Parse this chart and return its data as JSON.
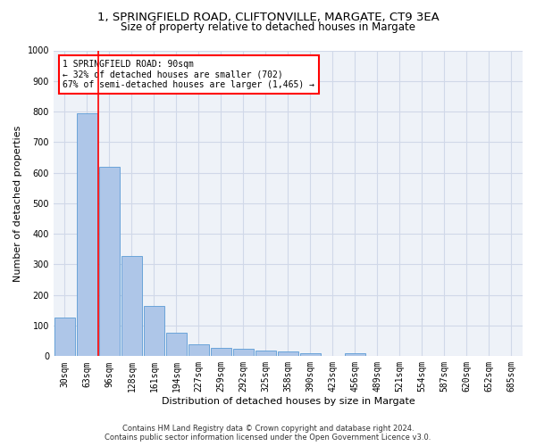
{
  "title1": "1, SPRINGFIELD ROAD, CLIFTONVILLE, MARGATE, CT9 3EA",
  "title2": "Size of property relative to detached houses in Margate",
  "xlabel": "Distribution of detached houses by size in Margate",
  "ylabel": "Number of detached properties",
  "bar_values": [
    125,
    795,
    620,
    328,
    163,
    78,
    40,
    27,
    24,
    18,
    15,
    10,
    0,
    10,
    0,
    0,
    0,
    0,
    0,
    0,
    0
  ],
  "bar_labels": [
    "30sqm",
    "63sqm",
    "96sqm",
    "128sqm",
    "161sqm",
    "194sqm",
    "227sqm",
    "259sqm",
    "292sqm",
    "325sqm",
    "358sqm",
    "390sqm",
    "423sqm",
    "456sqm",
    "489sqm",
    "521sqm",
    "554sqm",
    "587sqm",
    "620sqm",
    "652sqm",
    "685sqm"
  ],
  "bar_color": "#aec6e8",
  "bar_edge_color": "#5b9bd5",
  "grid_color": "#d0d8e8",
  "bg_color": "#eef2f8",
  "redline_x": 1.5,
  "annotation_text": "1 SPRINGFIELD ROAD: 90sqm\n← 32% of detached houses are smaller (702)\n67% of semi-detached houses are larger (1,465) →",
  "annotation_box_color": "white",
  "annotation_box_edge": "red",
  "ylim": [
    0,
    1000
  ],
  "yticks": [
    0,
    100,
    200,
    300,
    400,
    500,
    600,
    700,
    800,
    900,
    1000
  ],
  "footer1": "Contains HM Land Registry data © Crown copyright and database right 2024.",
  "footer2": "Contains public sector information licensed under the Open Government Licence v3.0.",
  "title_fontsize": 9.5,
  "subtitle_fontsize": 8.5,
  "axis_label_fontsize": 8,
  "tick_fontsize": 7,
  "footer_fontsize": 6,
  "annotation_fontsize": 7
}
